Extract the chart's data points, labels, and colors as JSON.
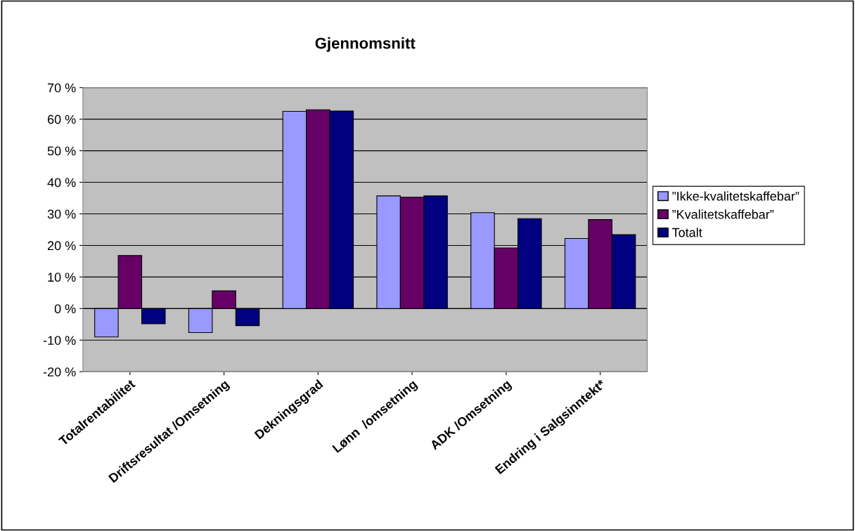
{
  "chart_data": {
    "type": "bar",
    "title": "Gjennomsnitt",
    "categories": [
      "Totalrentabilitet",
      "Driftsresultat /Omsetning",
      "Dekningsgrad",
      "Lønn  /omsetning",
      "ADK /Omsetning",
      "Endring i Salgsinntekt*"
    ],
    "series": [
      {
        "name": "”Ikke-kvalitetskaffebar”",
        "color": "#9999ff",
        "values": [
          -9.0,
          -7.6,
          62.5,
          35.7,
          30.4,
          22.2
        ]
      },
      {
        "name": "”Kvalitetskaffebar”",
        "color": "#660066",
        "values": [
          16.8,
          5.6,
          63.0,
          35.3,
          19.2,
          28.2
        ]
      },
      {
        "name": "Totalt",
        "color": "#000080",
        "values": [
          -4.8,
          -5.4,
          62.6,
          35.7,
          28.5,
          23.4
        ]
      }
    ],
    "ylim": [
      -20,
      70
    ],
    "yticks": [
      {
        "value": -20,
        "label": "-20 %"
      },
      {
        "value": -10,
        "label": "-10 %"
      },
      {
        "value": 0,
        "label": "0 %"
      },
      {
        "value": 10,
        "label": "10 %"
      },
      {
        "value": 20,
        "label": "20 %"
      },
      {
        "value": 30,
        "label": "30 %"
      },
      {
        "value": 40,
        "label": "40 %"
      },
      {
        "value": 50,
        "label": "50 %"
      },
      {
        "value": 60,
        "label": "60 %"
      },
      {
        "value": 70,
        "label": "70 %"
      }
    ],
    "grid": "y",
    "legend": "right"
  }
}
